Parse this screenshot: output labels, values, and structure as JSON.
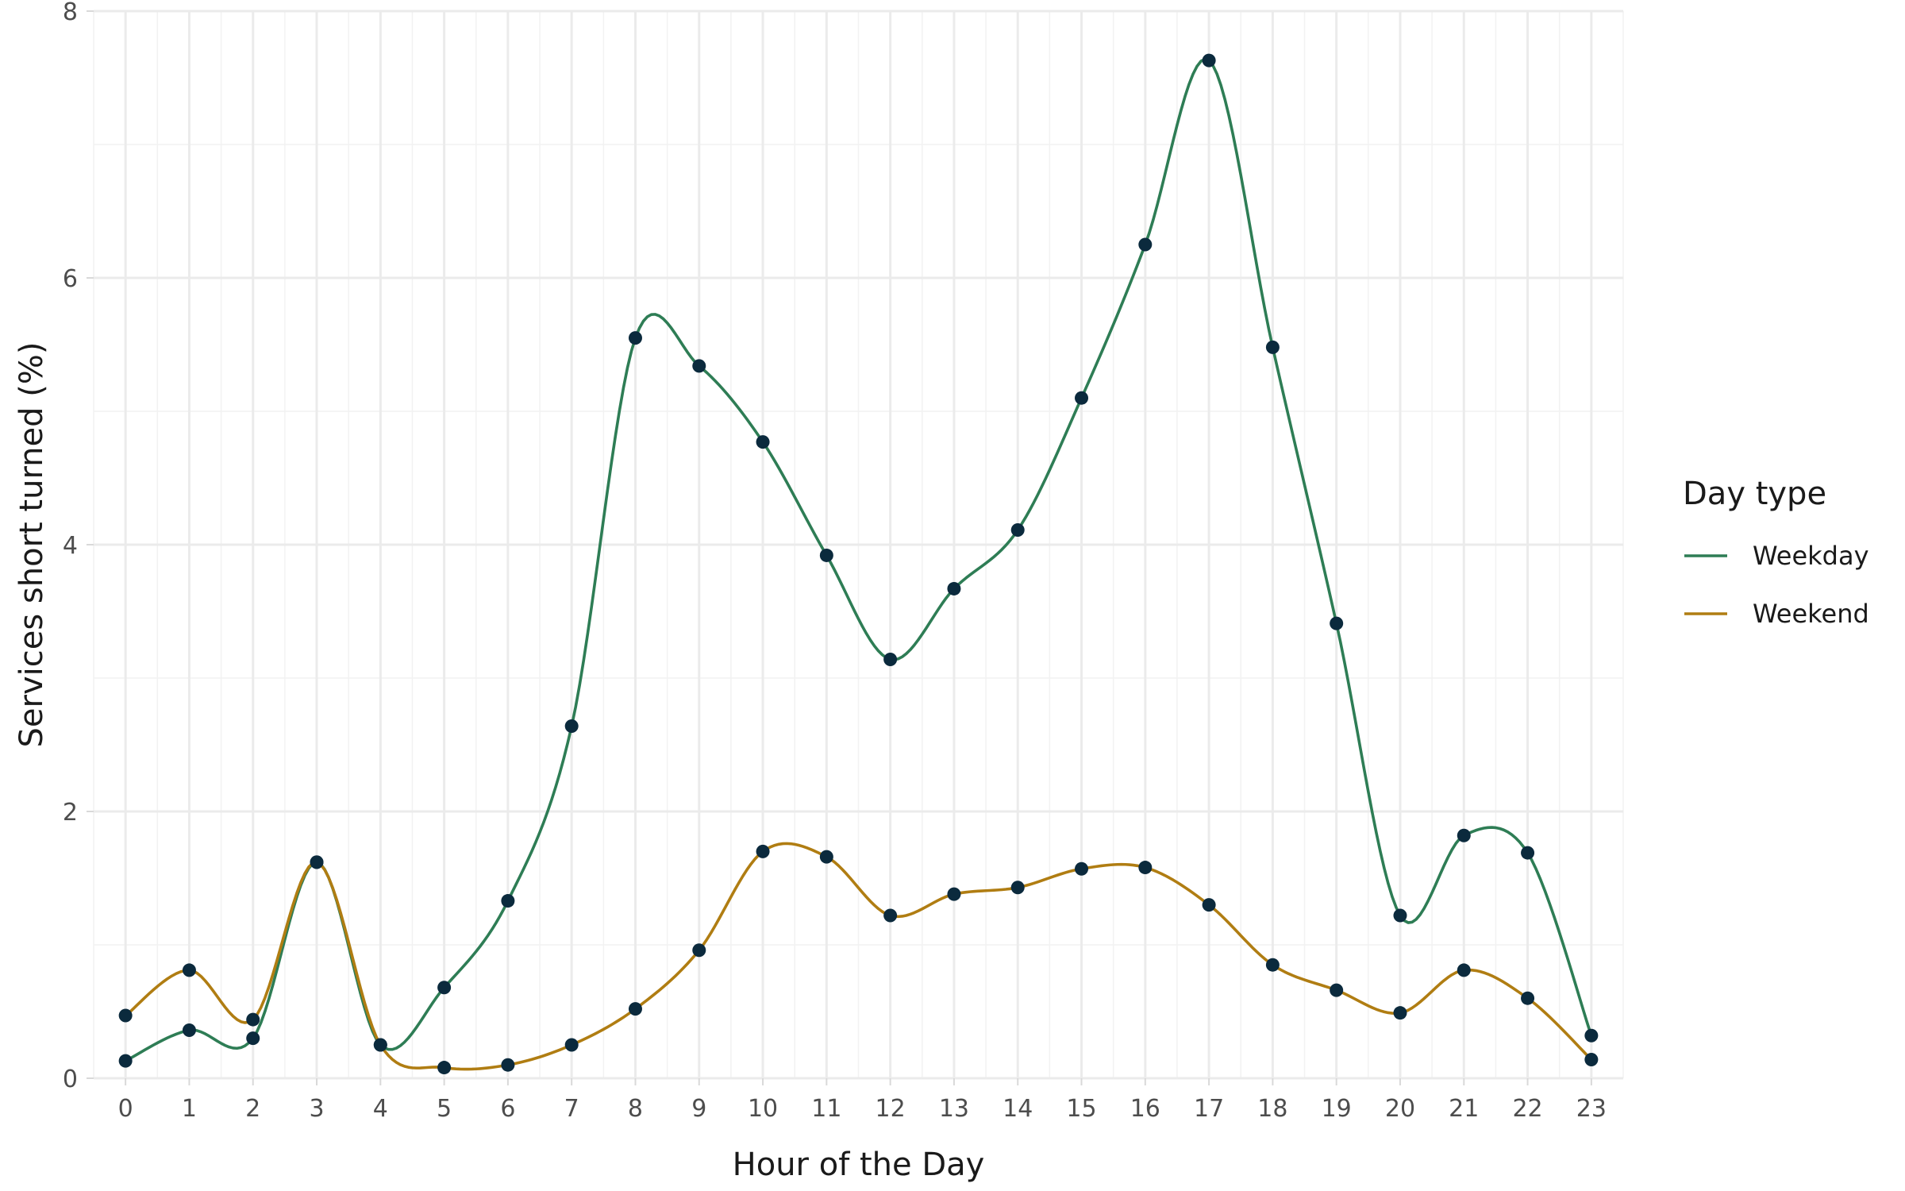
{
  "chart_data": {
    "type": "line",
    "title": "",
    "xlabel": "Hour of the Day",
    "ylabel": "Services short turned (%)",
    "x": [
      0,
      1,
      2,
      3,
      4,
      5,
      6,
      7,
      8,
      9,
      10,
      11,
      12,
      13,
      14,
      15,
      16,
      17,
      18,
      19,
      20,
      21,
      22,
      23
    ],
    "x_tick_labels": [
      "0",
      "1",
      "2",
      "3",
      "4",
      "5",
      "6",
      "7",
      "8",
      "9",
      "10",
      "11",
      "12",
      "13",
      "14",
      "15",
      "16",
      "17",
      "18",
      "19",
      "20",
      "21",
      "22",
      "23"
    ],
    "y_ticks": [
      0,
      2,
      4,
      6,
      8
    ],
    "y_tick_labels": [
      "0",
      "2",
      "4",
      "6",
      "8"
    ],
    "xlim": [
      -0.5,
      23.5
    ],
    "ylim": [
      0,
      8
    ],
    "grid": true,
    "legend": {
      "title": "Day type",
      "placement": "right"
    },
    "series": [
      {
        "name": "Weekday",
        "color": "#2e7d55",
        "values": [
          0.13,
          0.36,
          0.3,
          1.62,
          0.25,
          0.68,
          1.33,
          2.64,
          5.55,
          5.34,
          4.77,
          3.92,
          3.14,
          3.67,
          4.11,
          5.1,
          6.25,
          7.63,
          5.48,
          3.41,
          1.22,
          1.82,
          1.69,
          0.32
        ]
      },
      {
        "name": "Weekend",
        "color": "#b07d12",
        "values": [
          0.47,
          0.81,
          0.44,
          1.62,
          0.25,
          0.08,
          0.1,
          0.25,
          0.52,
          0.96,
          1.7,
          1.66,
          1.22,
          1.38,
          1.43,
          1.57,
          1.58,
          1.3,
          0.85,
          0.66,
          0.49,
          0.81,
          0.6,
          0.14
        ]
      }
    ],
    "point_color": "#0b2a3d"
  }
}
